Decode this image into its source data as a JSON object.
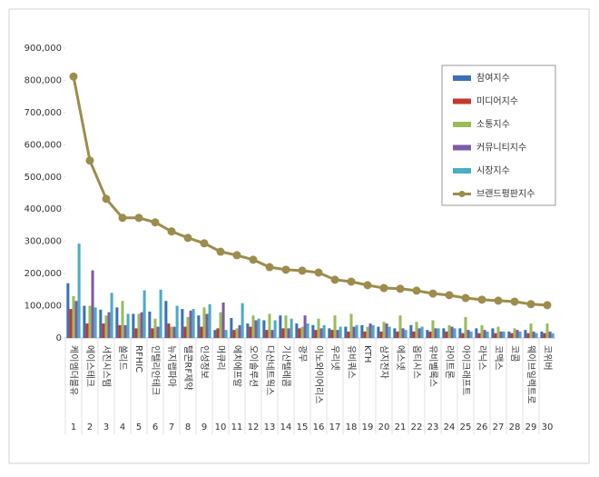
{
  "chart_data": {
    "type": "bar-line",
    "categories": [
      "케이엠더블유",
      "에이스테크",
      "서진시스템",
      "쏠리드",
      "RFHIC",
      "인텔리안테크",
      "뉴지랩파마",
      "텔콘RF제약",
      "인성정보",
      "머큐리",
      "에치에프알",
      "오이솔루션",
      "다산네트웍스",
      "기산텔레콤",
      "광무",
      "이노와이어리스",
      "우리넷",
      "유비쿼스",
      "KTH",
      "삼지전자",
      "에스넷",
      "옵티시스",
      "유비벨록스",
      "라이트론",
      "아이크래프트",
      "라닉스",
      "코맥스",
      "코콤",
      "웨이브일렉트로",
      "코위버"
    ],
    "ranks": [
      1,
      2,
      3,
      4,
      5,
      6,
      7,
      8,
      9,
      10,
      11,
      12,
      13,
      14,
      15,
      16,
      17,
      18,
      19,
      20,
      21,
      22,
      23,
      24,
      25,
      26,
      27,
      28,
      29,
      30
    ],
    "series": [
      {
        "name": "참여지수",
        "color": "#3f6fb6",
        "values": [
          170000,
          100000,
          88000,
          95000,
          75000,
          82000,
          115000,
          90000,
          70000,
          25000,
          62000,
          45000,
          55000,
          70000,
          45000,
          40000,
          30000,
          35000,
          40000,
          35000,
          30000,
          40000,
          25000,
          30000,
          30000,
          30000,
          30000,
          20000,
          25000,
          20000
        ]
      },
      {
        "name": "미디어지수",
        "color": "#c0392b",
        "values": [
          90000,
          45000,
          45000,
          40000,
          30000,
          30000,
          45000,
          35000,
          35000,
          30000,
          25000,
          35000,
          25000,
          30000,
          30000,
          25000,
          25000,
          20000,
          20000,
          20000,
          20000,
          20000,
          20000,
          20000,
          15000,
          15000,
          15000,
          15000,
          15000,
          15000
        ]
      },
      {
        "name": "소통지수",
        "color": "#9bbb59",
        "values": [
          130000,
          100000,
          70000,
          115000,
          75000,
          60000,
          35000,
          65000,
          95000,
          80000,
          30000,
          70000,
          75000,
          70000,
          35000,
          60000,
          70000,
          75000,
          35000,
          50000,
          70000,
          50000,
          55000,
          40000,
          65000,
          40000,
          35000,
          30000,
          45000,
          45000
        ]
      },
      {
        "name": "커뮤니티지수",
        "color": "#7d5ba6",
        "values": [
          115000,
          210000,
          80000,
          40000,
          80000,
          35000,
          35000,
          85000,
          75000,
          110000,
          40000,
          55000,
          25000,
          30000,
          70000,
          30000,
          25000,
          35000,
          45000,
          45000,
          30000,
          30000,
          30000,
          35000,
          25000,
          25000,
          20000,
          25000,
          20000,
          20000
        ]
      },
      {
        "name": "시장지수",
        "color": "#4bacc6",
        "values": [
          293000,
          95000,
          140000,
          75000,
          148000,
          150000,
          100000,
          90000,
          105000,
          25000,
          108000,
          60000,
          55000,
          60000,
          45000,
          40000,
          35000,
          40000,
          40000,
          35000,
          25000,
          35000,
          30000,
          30000,
          20000,
          20000,
          20000,
          20000,
          15000,
          15000
        ]
      },
      {
        "name": "브랜드평판지수",
        "color": "#9c8d4d",
        "kind": "line",
        "values": [
          812000,
          551000,
          432000,
          373000,
          373000,
          359000,
          331000,
          311000,
          294000,
          268000,
          257000,
          243000,
          220000,
          212000,
          209000,
          203000,
          181000,
          175000,
          164000,
          155000,
          153000,
          147000,
          138000,
          133000,
          124000,
          119000,
          116000,
          113000,
          105000,
          102000
        ]
      }
    ],
    "ylim": [
      0,
      900000
    ],
    "yticks": [
      0,
      {
        "value": 100000,
        "label": "100,000"
      },
      {
        "value": 200000,
        "label": "200,000"
      },
      {
        "value": 300000,
        "label": "300,000"
      },
      {
        "value": 400000,
        "label": "400,000"
      },
      {
        "value": 500000,
        "label": "500,000"
      },
      {
        "value": 600000,
        "label": "600,000"
      },
      {
        "value": 700000,
        "label": "700,000"
      },
      {
        "value": 800000,
        "label": "800,000"
      },
      {
        "value": 900000,
        "label": "900,000"
      }
    ],
    "grid": false,
    "legend": "upper right"
  }
}
